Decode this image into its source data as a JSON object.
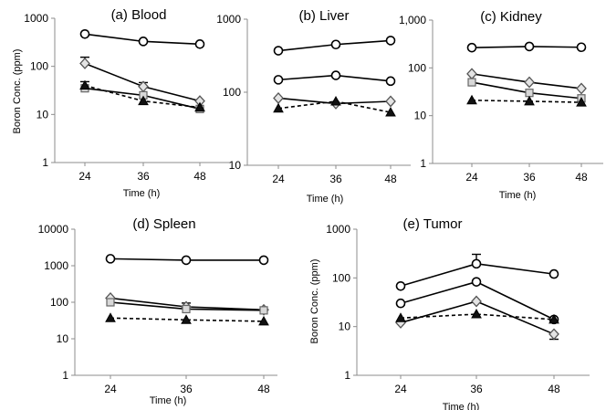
{
  "chart_data": [
    {
      "type": "line",
      "title": "(a) Blood",
      "xlabel": "Time (h)",
      "ylabel": "Boron Conc. (ppm)",
      "yscale": "log",
      "ylim": [
        1,
        1000
      ],
      "y_ticks": [
        "1",
        "10",
        "100",
        "1000"
      ],
      "categories": [
        "24",
        "36",
        "48"
      ],
      "series": [
        {
          "marker": "circle",
          "dash": "solid",
          "values": [
            470,
            330,
            290
          ]
        },
        {
          "marker": "diamond",
          "dash": "solid",
          "values": [
            115,
            38,
            19
          ],
          "error_up": [
            40,
            8,
            0
          ]
        },
        {
          "marker": "square",
          "dash": "solid",
          "values": [
            35,
            25,
            13
          ]
        },
        {
          "marker": "triangle",
          "dash": "dashed",
          "values": [
            40,
            19,
            14
          ],
          "error_up": [
            8,
            0,
            0
          ]
        }
      ]
    },
    {
      "type": "line",
      "title": "(b) Liver",
      "xlabel": "Time (h)",
      "yscale": "log",
      "ylim": [
        10,
        1000
      ],
      "y_ticks": [
        "10",
        "100",
        "1000"
      ],
      "categories": [
        "24",
        "36",
        "48"
      ],
      "series": [
        {
          "marker": "circle",
          "dash": "solid",
          "values": [
            370,
            450,
            510
          ]
        },
        {
          "marker": "circle",
          "dash": "solid",
          "values": [
            148,
            170,
            142
          ]
        },
        {
          "marker": "diamond",
          "dash": "solid",
          "values": [
            83,
            70,
            75
          ]
        },
        {
          "marker": "triangle",
          "dash": "dashed",
          "values": [
            60,
            75,
            53
          ]
        }
      ]
    },
    {
      "type": "line",
      "title": "(c) Kidney",
      "xlabel": "Time (h)",
      "yscale": "log",
      "ylim": [
        1,
        1000
      ],
      "y_ticks": [
        "1",
        "10",
        "100",
        "1,000"
      ],
      "categories": [
        "24",
        "36",
        "48"
      ],
      "series": [
        {
          "marker": "circle",
          "dash": "solid",
          "values": [
            265,
            280,
            270
          ]
        },
        {
          "marker": "diamond",
          "dash": "solid",
          "values": [
            75,
            50,
            37
          ]
        },
        {
          "marker": "square",
          "dash": "solid",
          "values": [
            50,
            30,
            23
          ]
        },
        {
          "marker": "triangle",
          "dash": "dashed",
          "values": [
            21,
            20,
            19
          ]
        }
      ]
    },
    {
      "type": "line",
      "title": "(d) Spleen",
      "xlabel": "Time (h)",
      "yscale": "log",
      "ylim": [
        1,
        10000
      ],
      "y_ticks": [
        "1",
        "10",
        "100",
        "1000",
        "10000"
      ],
      "categories": [
        "24",
        "36",
        "48"
      ],
      "series": [
        {
          "marker": "circle",
          "dash": "solid",
          "values": [
            1550,
            1420,
            1420
          ]
        },
        {
          "marker": "diamond",
          "dash": "solid",
          "values": [
            130,
            75,
            62
          ],
          "error_up": [
            0,
            20,
            0
          ]
        },
        {
          "marker": "square",
          "dash": "solid",
          "values": [
            100,
            65,
            60
          ]
        },
        {
          "marker": "triangle",
          "dash": "dashed",
          "values": [
            37,
            33,
            30
          ]
        }
      ]
    },
    {
      "type": "line",
      "title": "(e) Tumor",
      "xlabel": "Time (h)",
      "ylabel": "Boron Conc. (ppm)",
      "yscale": "log",
      "ylim": [
        1,
        1000
      ],
      "y_ticks": [
        "1",
        "10",
        "100",
        "1000"
      ],
      "categories": [
        "24",
        "36",
        "48"
      ],
      "series": [
        {
          "marker": "circle",
          "dash": "solid",
          "values": [
            68,
            195,
            120
          ],
          "error_up": [
            0,
            110,
            0
          ]
        },
        {
          "marker": "circle",
          "dash": "solid",
          "values": [
            30,
            83,
            14
          ]
        },
        {
          "marker": "diamond",
          "dash": "solid",
          "values": [
            12,
            33,
            7
          ],
          "error_down": [
            0,
            0,
            1.5
          ]
        },
        {
          "marker": "triangle",
          "dash": "dashed",
          "values": [
            15,
            18,
            14
          ]
        }
      ]
    }
  ]
}
